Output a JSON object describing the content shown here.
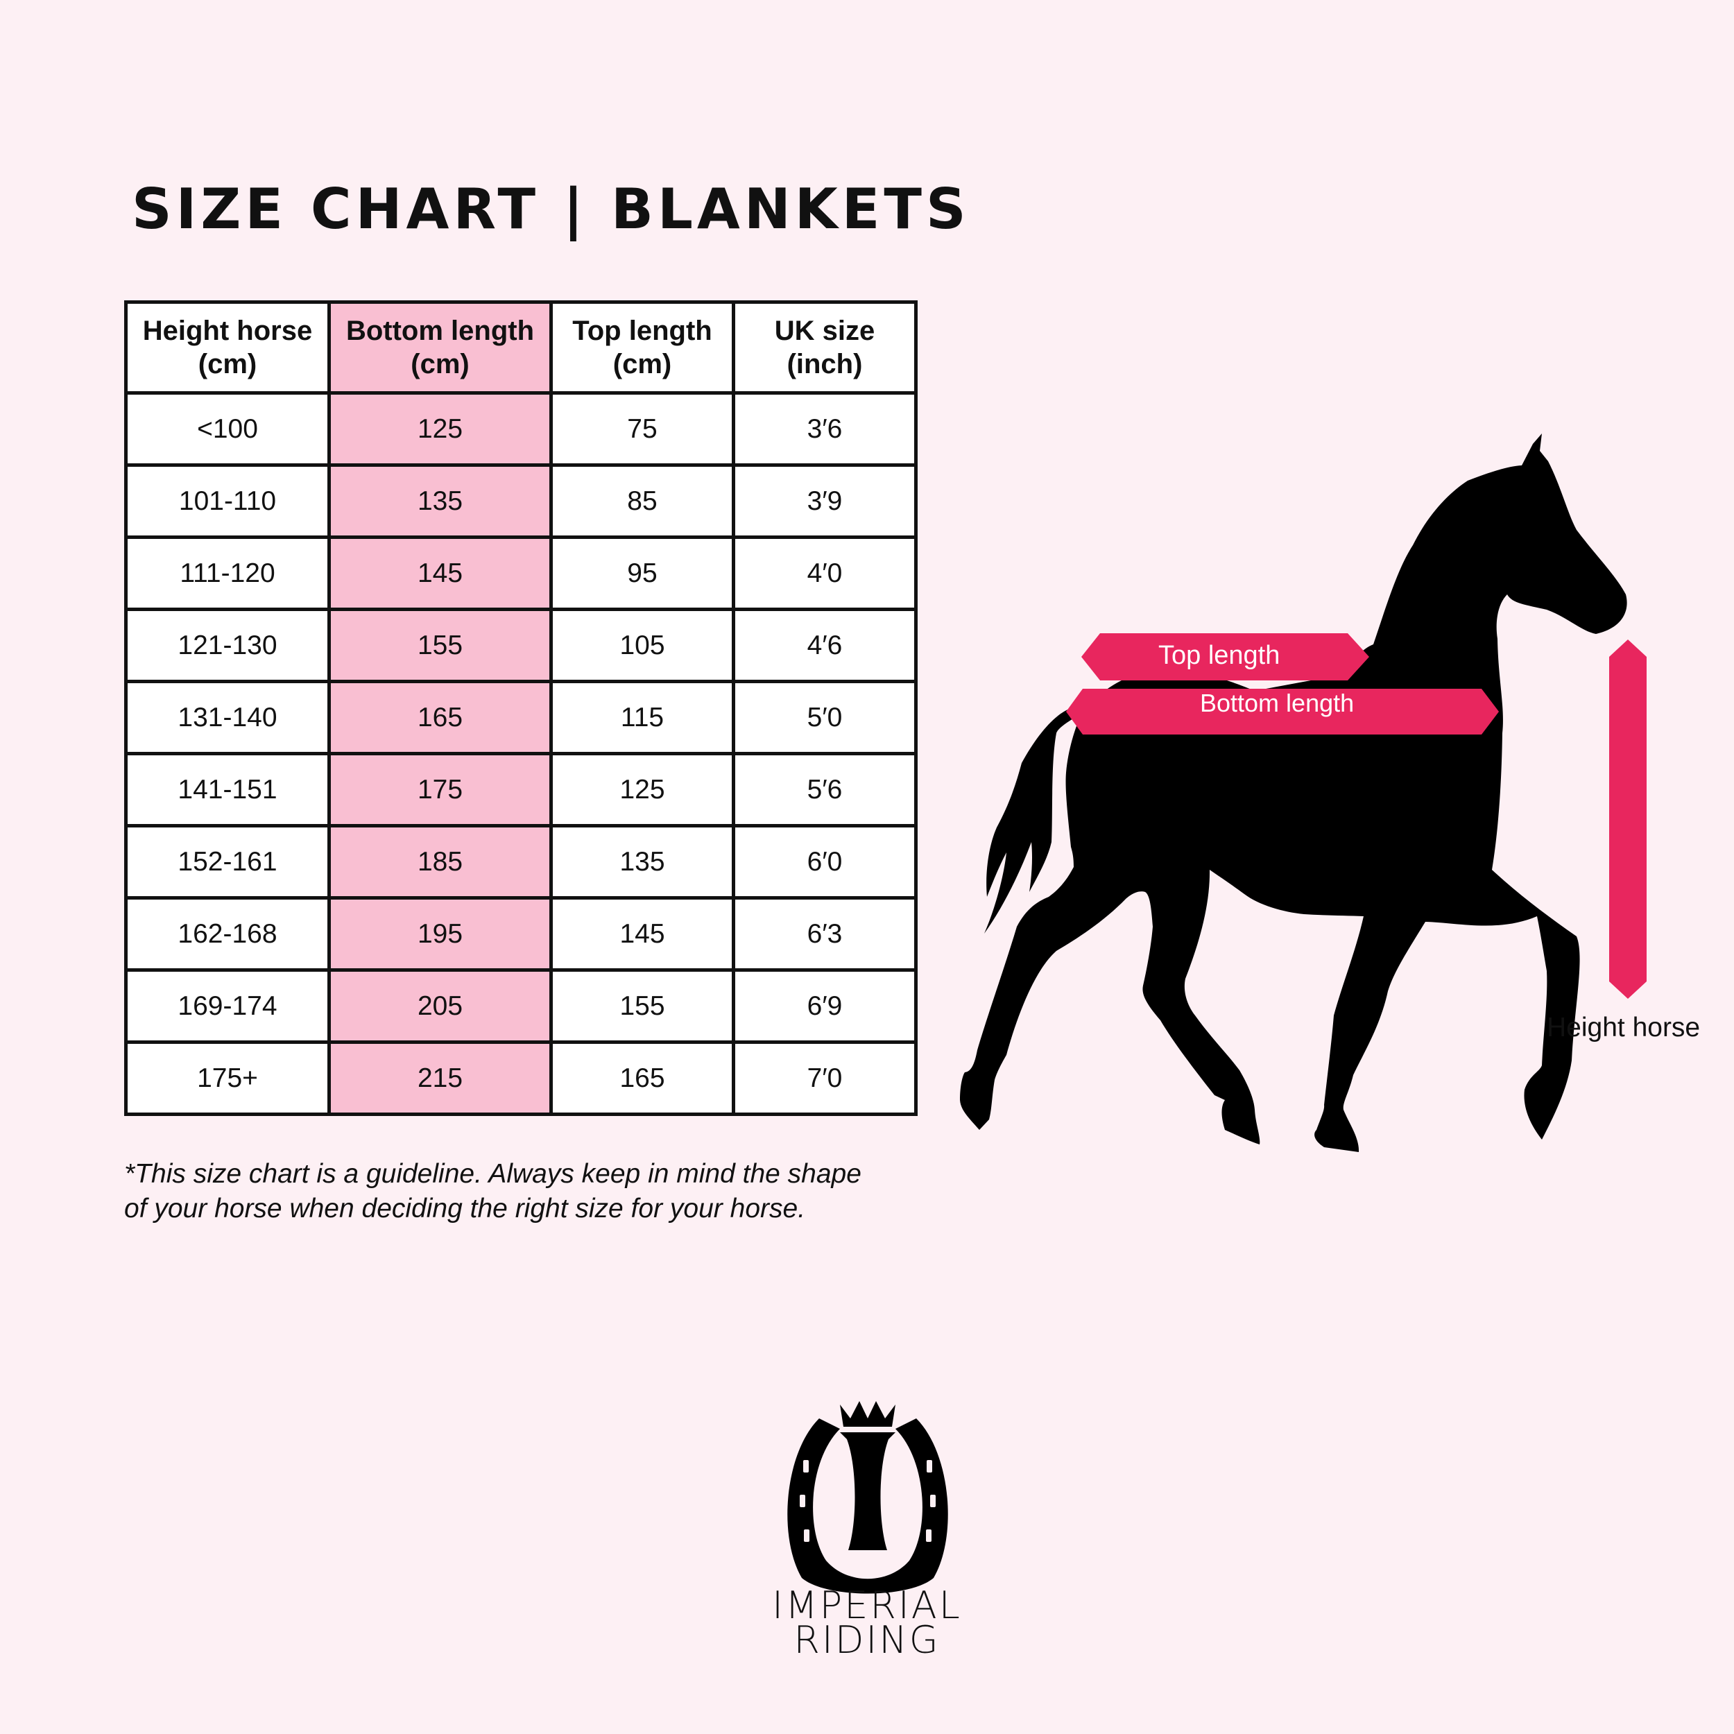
{
  "title": "SIZE CHART | BLANKETS",
  "table": {
    "headers": [
      {
        "line1": "Height horse",
        "line2": "(cm)"
      },
      {
        "line1": "Bottom length",
        "line2": "(cm)"
      },
      {
        "line1": "Top length",
        "line2": "(cm)"
      },
      {
        "line1": "UK size",
        "line2": "(inch)"
      }
    ],
    "rows": [
      [
        "<100",
        "125",
        "75",
        "3′6"
      ],
      [
        "101-110",
        "135",
        "85",
        "3′9"
      ],
      [
        "111-120",
        "145",
        "95",
        "4′0"
      ],
      [
        "121-130",
        "155",
        "105",
        "4′6"
      ],
      [
        "131-140",
        "165",
        "115",
        "5′0"
      ],
      [
        "141-151",
        "175",
        "125",
        "5′6"
      ],
      [
        "152-161",
        "185",
        "135",
        "6′0"
      ],
      [
        "162-168",
        "195",
        "145",
        "6′3"
      ],
      [
        "169-174",
        "205",
        "155",
        "6′9"
      ],
      [
        "175+",
        "215",
        "165",
        "7′0"
      ]
    ],
    "highlight_color": "#f9bfd2"
  },
  "note": {
    "line1": "*This size chart is a guideline. Always keep in mind the shape",
    "line2": "of your horse when deciding the right size for your horse."
  },
  "diagram": {
    "top_length": "Top length",
    "bottom_length": "Bottom length",
    "height_horse": "Height horse",
    "accent_color": "#e8265e"
  },
  "logo": {
    "line1": "IMPERIAL",
    "line2": "RIDING"
  }
}
